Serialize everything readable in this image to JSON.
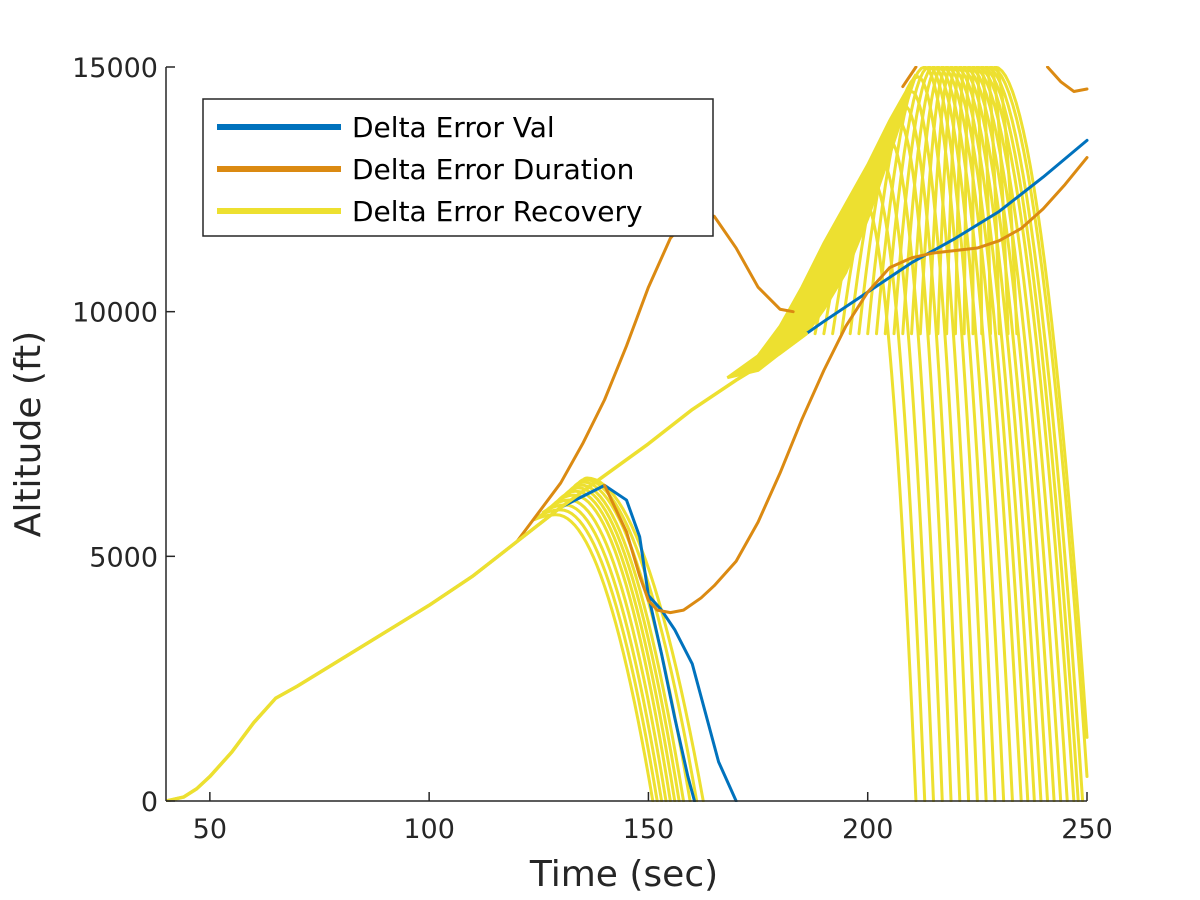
{
  "chart_data": {
    "type": "line",
    "title": "",
    "xlabel": "Time (sec)",
    "ylabel": "Altitude (ft)",
    "xlim": [
      40,
      250
    ],
    "ylim": [
      0,
      15000
    ],
    "xticks": [
      "50",
      "100",
      "150",
      "200",
      "250"
    ],
    "yticks": [
      "0",
      "5000",
      "10000",
      "15000"
    ],
    "grid": false,
    "legend_position": "top-left",
    "colors": {
      "val": "#0072BD",
      "duration": "#D95319",
      "duration_draw": "#DB8A12",
      "recovery": "#EDE030",
      "axis": "#262626"
    },
    "series": [
      {
        "name": "Delta Error Val",
        "style": "single",
        "x": [
          40,
          44,
          47,
          50,
          55,
          60,
          65,
          70,
          80,
          90,
          100,
          110,
          120,
          130,
          140,
          145,
          148,
          150,
          153,
          156,
          160,
          163,
          166,
          170
        ],
        "y": [
          0,
          80,
          250,
          500,
          1000,
          1600,
          2100,
          2350,
          2900,
          3450,
          4000,
          4600,
          5300,
          6000,
          6450,
          6150,
          5400,
          4200,
          3900,
          3500,
          2800,
          1800,
          800,
          0
        ]
      },
      {
        "name": "Delta Error Val",
        "style": "single",
        "x": [
          150,
          153,
          156,
          159,
          160.5
        ],
        "y": [
          4200,
          3000,
          1700,
          500,
          0
        ]
      },
      {
        "name": "Delta Error Val",
        "style": "single",
        "x": [
          186,
          190,
          200,
          210,
          220,
          230,
          240,
          250
        ],
        "y": [
          9550,
          9800,
          10400,
          11000,
          11500,
          12050,
          12750,
          13500
        ]
      },
      {
        "name": "Delta Error Duration",
        "style": "single",
        "x": [
          120,
          125,
          130,
          135,
          140,
          145,
          150,
          155,
          160,
          165,
          170,
          175,
          180,
          183
        ],
        "y": [
          5300,
          5900,
          6500,
          7300,
          8200,
          9300,
          10500,
          11500,
          12000,
          11950,
          11300,
          10500,
          10050,
          10000
        ]
      },
      {
        "name": "Delta Error Duration",
        "style": "single",
        "x": [
          140,
          145,
          148,
          150,
          152,
          155,
          158,
          162,
          165,
          170,
          175,
          180,
          185,
          190,
          195,
          200,
          205,
          210,
          215,
          220,
          225,
          230,
          235,
          240,
          245,
          250
        ],
        "y": [
          6450,
          5500,
          4600,
          4100,
          3900,
          3850,
          3900,
          4150,
          4400,
          4900,
          5700,
          6700,
          7800,
          8800,
          9700,
          10400,
          10900,
          11100,
          11200,
          11250,
          11300,
          11450,
          11700,
          12100,
          12600,
          13150
        ]
      },
      {
        "name": "Delta Error Duration",
        "style": "single",
        "x": [
          208,
          211
        ],
        "y": [
          14600,
          15000
        ]
      },
      {
        "name": "Delta Error Duration",
        "style": "single",
        "x": [
          241,
          244,
          247,
          250
        ],
        "y": [
          15000,
          14700,
          14500,
          14550
        ]
      },
      {
        "name": "Delta Error Recovery",
        "style": "main",
        "x": [
          40,
          44,
          47,
          50,
          55,
          60,
          65,
          70,
          80,
          90,
          100,
          110,
          120,
          130,
          140,
          150,
          160,
          170,
          180,
          186
        ],
        "y": [
          0,
          80,
          250,
          500,
          1000,
          1600,
          2100,
          2350,
          2900,
          3450,
          4000,
          4600,
          5300,
          6000,
          6650,
          7300,
          8000,
          8600,
          9150,
          9550
        ]
      },
      {
        "name": "Delta Error Recovery",
        "style": "fan_low",
        "start_x": [
          124,
          125,
          126,
          127,
          128,
          129,
          130,
          131,
          132,
          133,
          134
        ],
        "start_y": [
          5750,
          5820,
          5900,
          5960,
          6030,
          6100,
          6150,
          6220,
          6290,
          6350,
          6420
        ],
        "peak_x": [
          129,
          130,
          131,
          132,
          133,
          133.5,
          134,
          134.5,
          135,
          135.5,
          136
        ],
        "peak_y": [
          5850,
          5950,
          6050,
          6150,
          6250,
          6330,
          6400,
          6460,
          6520,
          6570,
          6600
        ],
        "end_x": [
          151,
          152,
          153,
          154,
          155,
          156,
          157,
          158,
          159.5,
          161,
          162.5
        ]
      },
      {
        "name": "Delta Error Recovery",
        "style": "fan_high",
        "start_x": [
          186,
          188,
          190,
          192,
          194,
          196,
          198,
          200,
          202,
          204,
          206,
          208,
          210,
          212,
          214,
          216,
          218,
          220,
          222,
          224,
          226,
          228,
          230,
          232,
          234
        ],
        "peak_x": [
          199,
          201,
          203,
          205,
          207,
          208.5,
          210,
          211.5,
          213,
          214,
          215,
          216,
          217,
          218,
          219,
          220,
          221,
          222,
          223,
          224,
          225,
          226,
          227,
          228,
          229
        ],
        "peak_y": [
          12300,
          12700,
          13100,
          13500,
          13900,
          14200,
          14500,
          14800,
          15000,
          15000,
          15000,
          15000,
          15000,
          15000,
          15000,
          15000,
          15000,
          15000,
          15000,
          15000,
          15000,
          15000,
          15000,
          15000,
          15000
        ],
        "end_x": [
          211,
          213,
          215,
          217,
          219,
          221,
          223,
          225,
          227,
          229,
          231,
          233,
          235,
          236.5,
          238,
          239.5,
          241,
          242.5,
          244,
          245.5,
          247,
          248,
          249,
          250,
          250
        ],
        "end_y": [
          0,
          0,
          0,
          0,
          0,
          0,
          0,
          0,
          0,
          0,
          0,
          0,
          0,
          0,
          0,
          0,
          0,
          0,
          0,
          0,
          0,
          0,
          0,
          500,
          1300
        ]
      }
    ],
    "legend": [
      {
        "label": "Delta Error Val",
        "color_key": "val"
      },
      {
        "label": "Delta Error Duration",
        "color_key": "duration_draw"
      },
      {
        "label": "Delta Error Recovery",
        "color_key": "recovery"
      }
    ]
  }
}
